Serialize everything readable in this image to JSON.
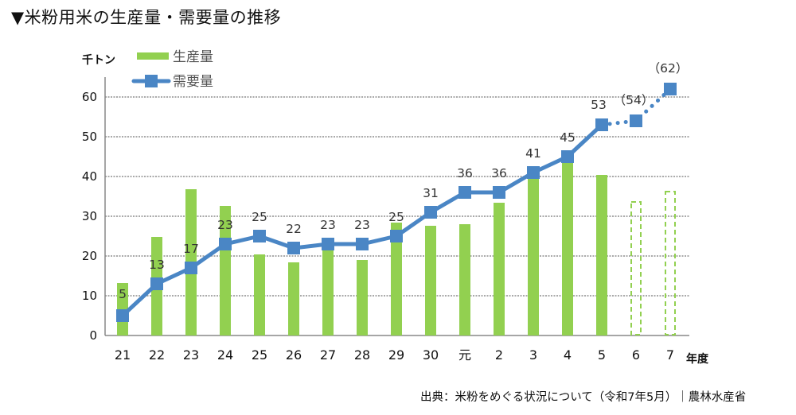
{
  "title": "▼米粉用米の生産量・需要量の推移",
  "source": "出典：米粉をめぐる状況について（令和7年5月）｜農林水産省",
  "chart_data": {
    "type": "bar+line",
    "title": "米粉用米の生産量・需要量の推移",
    "ylabel": "千トン",
    "xlabel": "年度",
    "ylim": [
      0,
      60
    ],
    "yticks": [
      0,
      10,
      20,
      30,
      40,
      50,
      60
    ],
    "grid": true,
    "legend_position": "top-left",
    "categories": [
      "21",
      "22",
      "23",
      "24",
      "25",
      "26",
      "27",
      "28",
      "29",
      "30",
      "元",
      "2",
      "3",
      "4",
      "5",
      "6",
      "7"
    ],
    "series": [
      {
        "name": "生産量",
        "type": "bar",
        "color": "#92D050",
        "values": [
          13.2,
          24.8,
          36.8,
          32.6,
          20.4,
          18.4,
          22,
          19,
          28.4,
          27.6,
          28,
          33.4,
          41,
          44,
          40.4,
          33.6,
          36.2
        ],
        "estimated": [
          false,
          false,
          false,
          false,
          false,
          false,
          false,
          false,
          false,
          false,
          false,
          false,
          false,
          false,
          false,
          true,
          true
        ]
      },
      {
        "name": "需要量",
        "type": "line",
        "color": "#4A86C5",
        "values": [
          5,
          13,
          17,
          23,
          25,
          22,
          23,
          23,
          25,
          31,
          36,
          36,
          41,
          45,
          53,
          54,
          62
        ],
        "labels": [
          "5",
          "13",
          "17",
          "23",
          "25",
          "22",
          "23",
          "23",
          "25",
          "31",
          "36",
          "36",
          "41",
          "45",
          "53",
          "（54）",
          "（62）"
        ],
        "estimated": [
          false,
          false,
          false,
          false,
          false,
          false,
          false,
          false,
          false,
          false,
          false,
          false,
          false,
          false,
          false,
          true,
          true
        ]
      }
    ]
  }
}
